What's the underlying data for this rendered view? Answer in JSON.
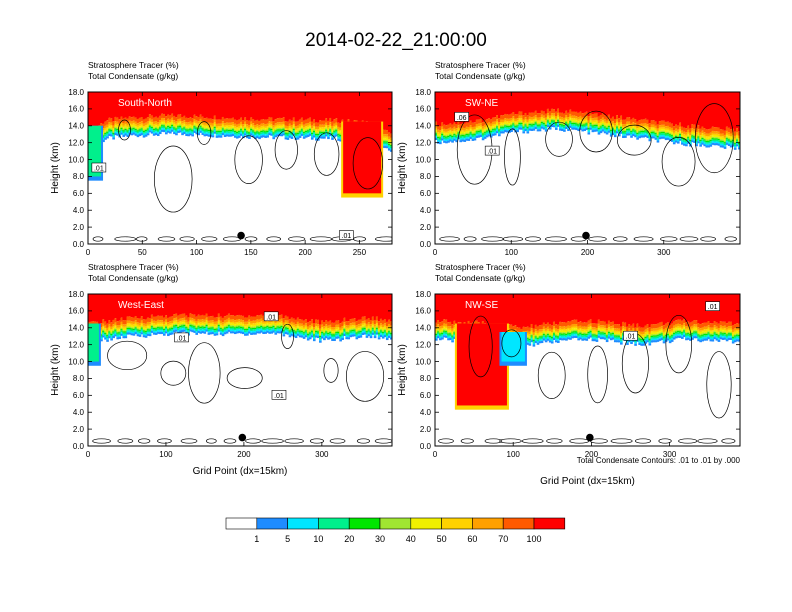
{
  "page": {
    "title": "2014-02-22_21:00:00",
    "contour_note": "Total Condensate Contours: .01 to .01 by .000"
  },
  "colors": {
    "bins": [
      "#ffffff",
      "#1e8cff",
      "#00e6ff",
      "#00f08c",
      "#00e600",
      "#a0e632",
      "#f0f000",
      "#ffd200",
      "#ffa000",
      "#ff5a00",
      "#ff0000"
    ],
    "contour": "#000000",
    "marker": "#000000"
  },
  "chart_data": [
    {
      "type": "heatmap",
      "subtitle_lines": [
        "Stratosphere Tracer   (%)",
        "Total Condensate   (g/kg)"
      ],
      "inset_label": "South-North",
      "ylabel": "Height (km)",
      "xlabel": "",
      "xlim": [
        0,
        280
      ],
      "ylim": [
        0,
        18
      ],
      "xticks": [
        0,
        50,
        100,
        150,
        200,
        250
      ],
      "yticks": [
        0,
        2,
        4,
        6,
        8,
        10,
        12,
        14,
        16,
        18
      ],
      "ytick_labels": [
        "0.0",
        "2.0",
        "4.0",
        "6.0",
        "8.0",
        "10.0",
        "12.0",
        "14.0",
        "16.0",
        "18.0"
      ],
      "tracer_base_km": [
        [
          0,
          13.2
        ],
        [
          15,
          14.6
        ],
        [
          40,
          15.0
        ],
        [
          80,
          15.2
        ],
        [
          120,
          15.0
        ],
        [
          160,
          14.8
        ],
        [
          200,
          14.7
        ],
        [
          230,
          14.6
        ],
        [
          255,
          14.4
        ],
        [
          268,
          13.5
        ],
        [
          280,
          13.0
        ]
      ],
      "intrusions": [
        {
          "x0": 0,
          "x1": 12,
          "bottom_km": 8.0,
          "top_km": 14.0,
          "min_bin": 3
        },
        {
          "x0": 235,
          "x1": 270,
          "bottom_km": 6.0,
          "top_km": 14.5,
          "min_bin": 10
        }
      ],
      "contour_labels": [
        {
          "x": 10,
          "y": 9.0,
          "text": ".01"
        },
        {
          "x": 238,
          "y": 1.0,
          "text": ".01"
        }
      ],
      "marker": {
        "x": 141,
        "y": 1.0
      }
    },
    {
      "type": "heatmap",
      "subtitle_lines": [
        "Stratosphere Tracer   (%)",
        "Total Condensate   (g/kg)"
      ],
      "inset_label": "SW-NE",
      "ylabel": "Height (km)",
      "xlabel": "",
      "xlim": [
        0,
        400
      ],
      "ylim": [
        0,
        18
      ],
      "xticks": [
        0,
        100,
        200,
        300
      ],
      "yticks": [
        0,
        2,
        4,
        6,
        8,
        10,
        12,
        14,
        16,
        18
      ],
      "ytick_labels": [
        "0.0",
        "2.0",
        "4.0",
        "6.0",
        "8.0",
        "10.0",
        "12.0",
        "14.0",
        "16.0",
        "18.0"
      ],
      "tracer_base_km": [
        [
          0,
          14.2
        ],
        [
          50,
          14.5
        ],
        [
          100,
          15.4
        ],
        [
          160,
          15.8
        ],
        [
          220,
          15.2
        ],
        [
          280,
          14.5
        ],
        [
          330,
          14.0
        ],
        [
          380,
          13.6
        ],
        [
          400,
          13.5
        ]
      ],
      "intrusions": [],
      "contour_labels": [
        {
          "x": 35,
          "y": 15.0,
          "text": ".06"
        },
        {
          "x": 75,
          "y": 11.0,
          "text": ".01"
        }
      ],
      "marker": {
        "x": 198,
        "y": 1.0
      }
    },
    {
      "type": "heatmap",
      "subtitle_lines": [
        "Stratosphere Tracer   (%)",
        "Total Condensate   (g/kg)"
      ],
      "inset_label": "West-East",
      "ylabel": "Height (km)",
      "xlabel": "Grid Point (dx=15km)",
      "xlim": [
        0,
        390
      ],
      "ylim": [
        0,
        18
      ],
      "xticks": [
        0,
        100,
        200,
        300
      ],
      "yticks": [
        0,
        2,
        4,
        6,
        8,
        10,
        12,
        14,
        16,
        18
      ],
      "ytick_labels": [
        "0.0",
        "2.0",
        "4.0",
        "6.0",
        "8.0",
        "10.0",
        "12.0",
        "14.0",
        "16.0",
        "18.0"
      ],
      "tracer_base_km": [
        [
          0,
          14.5
        ],
        [
          60,
          15.2
        ],
        [
          120,
          15.5
        ],
        [
          180,
          15.4
        ],
        [
          240,
          15.5
        ],
        [
          300,
          14.6
        ],
        [
          360,
          15.2
        ],
        [
          390,
          14.8
        ]
      ],
      "intrusions": [
        {
          "x0": 0,
          "x1": 14,
          "bottom_km": 10.0,
          "top_km": 14.5,
          "min_bin": 3
        }
      ],
      "contour_labels": [
        {
          "x": 235,
          "y": 15.3,
          "text": ".01"
        },
        {
          "x": 120,
          "y": 12.8,
          "text": ".01"
        },
        {
          "x": 245,
          "y": 6.0,
          "text": ".01"
        }
      ],
      "marker": {
        "x": 198,
        "y": 1.0
      }
    },
    {
      "type": "heatmap",
      "subtitle_lines": [
        "Stratosphere Tracer   (%)",
        "Total Condensate   (g/kg)"
      ],
      "inset_label": "NW-SE",
      "ylabel": "Height (km)",
      "xlabel": "Grid Point (dx=15km)",
      "xlim": [
        0,
        390
      ],
      "ylim": [
        0,
        18
      ],
      "xticks": [
        0,
        100,
        200,
        300
      ],
      "yticks": [
        0,
        2,
        4,
        6,
        8,
        10,
        12,
        14,
        16,
        18
      ],
      "ytick_labels": [
        "0.0",
        "2.0",
        "4.0",
        "6.0",
        "8.0",
        "10.0",
        "12.0",
        "14.0",
        "16.0",
        "18.0"
      ],
      "tracer_base_km": [
        [
          0,
          14.8
        ],
        [
          60,
          14.5
        ],
        [
          110,
          14.0
        ],
        [
          150,
          14.5
        ],
        [
          200,
          14.8
        ],
        [
          260,
          14.2
        ],
        [
          320,
          14.8
        ],
        [
          390,
          14.5
        ]
      ],
      "intrusions": [
        {
          "x0": 28,
          "x1": 92,
          "bottom_km": 4.8,
          "top_km": 14.5,
          "min_bin": 10
        },
        {
          "x0": 85,
          "x1": 115,
          "bottom_km": 10.0,
          "top_km": 13.5,
          "min_bin": 2
        }
      ],
      "contour_labels": [
        {
          "x": 355,
          "y": 16.5,
          "text": ".01"
        },
        {
          "x": 250,
          "y": 13.0,
          "text": ".01"
        }
      ],
      "marker": {
        "x": 198,
        "y": 1.0
      }
    }
  ],
  "colorbar": {
    "labels": [
      "1",
      "5",
      "10",
      "20",
      "30",
      "40",
      "50",
      "60",
      "70",
      "100"
    ]
  }
}
